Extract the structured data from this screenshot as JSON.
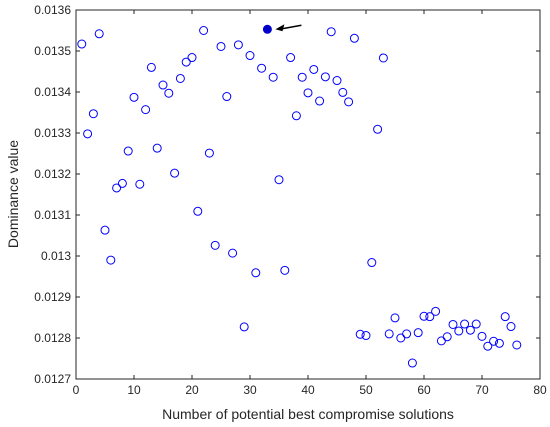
{
  "chart_data": {
    "type": "scatter",
    "title": "",
    "xlabel": "Number of potential best compromise solutions",
    "ylabel": "Dominance value",
    "xlim": [
      0,
      80
    ],
    "ylim": [
      0.0127,
      0.0136
    ],
    "x_ticks": [
      "0",
      "10",
      "20",
      "30",
      "40",
      "50",
      "60",
      "70",
      "80"
    ],
    "y_ticks": [
      "0.0127",
      "0.0128",
      "0.0129",
      "0.013",
      "0.0131",
      "0.0132",
      "0.0133",
      "0.0134",
      "0.0135",
      "0.0136"
    ],
    "grid": false,
    "marker": "open-circle",
    "marker_color": "#0000ff",
    "highlight_color": "#0000cc",
    "arrow_color": "#000000",
    "series": [
      {
        "points": [
          [
            1,
            0.013517
          ],
          [
            2,
            0.013298
          ],
          [
            3,
            0.013347
          ],
          [
            4,
            0.013542
          ],
          [
            5,
            0.013063
          ],
          [
            6,
            0.01299
          ],
          [
            7,
            0.013166
          ],
          [
            8,
            0.013177
          ],
          [
            9,
            0.013256
          ],
          [
            10,
            0.013387
          ],
          [
            11,
            0.013175
          ],
          [
            12,
            0.013357
          ],
          [
            13,
            0.01346
          ],
          [
            14,
            0.013263
          ],
          [
            15,
            0.013417
          ],
          [
            16,
            0.013397
          ],
          [
            17,
            0.013202
          ],
          [
            18,
            0.013433
          ],
          [
            19,
            0.013473
          ],
          [
            20,
            0.013484
          ],
          [
            21,
            0.013109
          ],
          [
            22,
            0.01355
          ],
          [
            23,
            0.013251
          ],
          [
            24,
            0.013026
          ],
          [
            25,
            0.013511
          ],
          [
            26,
            0.013389
          ],
          [
            27,
            0.013007
          ],
          [
            28,
            0.013515
          ],
          [
            29,
            0.012827
          ],
          [
            30,
            0.013489
          ],
          [
            31,
            0.012959
          ],
          [
            32,
            0.013458
          ],
          [
            34,
            0.013436
          ],
          [
            35,
            0.013186
          ],
          [
            36,
            0.012965
          ],
          [
            37,
            0.013484
          ],
          [
            38,
            0.013342
          ],
          [
            39,
            0.013436
          ],
          [
            40,
            0.013398
          ],
          [
            41,
            0.013455
          ],
          [
            42,
            0.013378
          ],
          [
            43,
            0.013437
          ],
          [
            44,
            0.013547
          ],
          [
            45,
            0.013428
          ],
          [
            46,
            0.013399
          ],
          [
            47,
            0.013376
          ],
          [
            48,
            0.013531
          ],
          [
            49,
            0.012809
          ],
          [
            50,
            0.012806
          ],
          [
            51,
            0.012984
          ],
          [
            52,
            0.013309
          ],
          [
            53,
            0.013483
          ],
          [
            54,
            0.01281
          ],
          [
            55,
            0.012849
          ],
          [
            56,
            0.0128
          ],
          [
            57,
            0.01281
          ],
          [
            58,
            0.012739
          ],
          [
            59,
            0.012813
          ],
          [
            60,
            0.012853
          ],
          [
            61,
            0.012852
          ],
          [
            62,
            0.012865
          ],
          [
            63,
            0.012793
          ],
          [
            64,
            0.012803
          ],
          [
            65,
            0.012833
          ],
          [
            66,
            0.012817
          ],
          [
            67,
            0.012834
          ],
          [
            68,
            0.012819
          ],
          [
            69,
            0.012834
          ],
          [
            70,
            0.012804
          ],
          [
            71,
            0.01278
          ],
          [
            72,
            0.012792
          ],
          [
            73,
            0.012787
          ],
          [
            74,
            0.012852
          ],
          [
            75,
            0.012828
          ],
          [
            76,
            0.012783
          ]
        ]
      }
    ],
    "highlight_point": [
      33,
      0.013553
    ]
  }
}
